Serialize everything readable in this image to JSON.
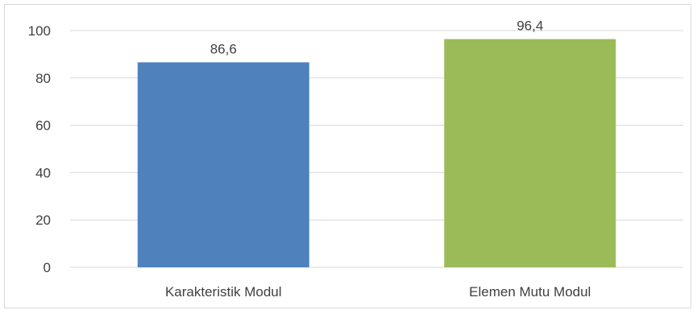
{
  "chart_data": {
    "type": "bar",
    "categories": [
      "Karakteristik Modul",
      "Elemen Mutu Modul"
    ],
    "values": [
      86.6,
      96.4
    ],
    "data_labels": [
      "86,6",
      "96,4"
    ],
    "colors": [
      "#4f81bd",
      "#9bbb59"
    ],
    "ylim": [
      0,
      100
    ],
    "yticks": [
      0,
      20,
      40,
      60,
      80,
      100
    ],
    "ytick_labels": [
      "0",
      "20",
      "40",
      "60",
      "80",
      "100"
    ],
    "grid": true,
    "legend": "none",
    "title": "",
    "xlabel": "",
    "ylabel": ""
  }
}
